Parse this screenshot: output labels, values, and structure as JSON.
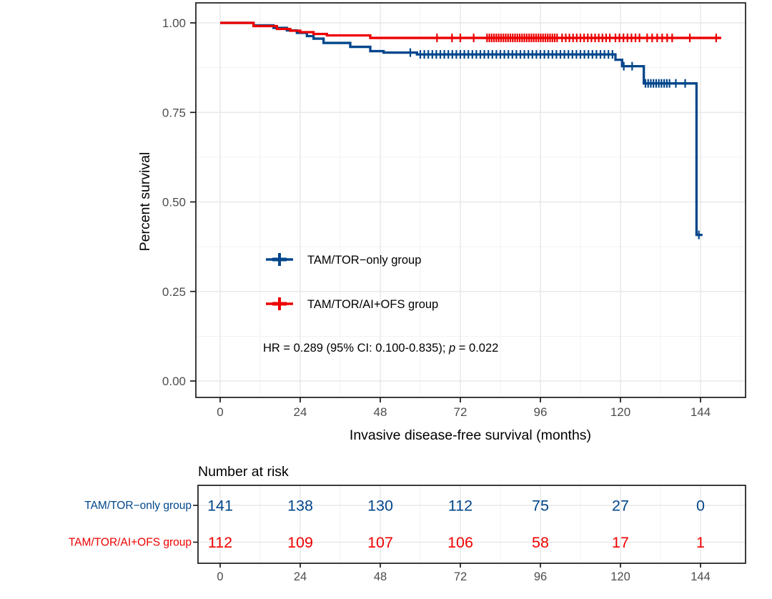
{
  "figure": {
    "y_axis_title": "Percent survival",
    "x_axis_title": "Invasive disease-free survival (months)",
    "hr_annotation": {
      "prefix": "HR = 0.289 (95% CI: 0.100-0.835); ",
      "p_symbol": "p",
      "suffix": " = 0.022"
    }
  },
  "chart_data": {
    "type": "line",
    "subtype": "kaplan-meier-step",
    "title": "",
    "xlabel": "Invasive disease-free survival (months)",
    "ylabel": "Percent survival",
    "xlim": [
      0,
      144
    ],
    "ylim": [
      0.0,
      1.0
    ],
    "x_ticks": [
      0,
      24,
      48,
      72,
      96,
      120,
      144
    ],
    "y_ticks": [
      1.0,
      0.75,
      0.5,
      0.25,
      0.0
    ],
    "y_tick_labels": [
      "1.00",
      "0.75",
      "0.50",
      "0.25",
      "0.00"
    ],
    "grid": "major+minor",
    "legend_position": "inside-lower-left",
    "annotation": "HR = 0.289 (95% CI: 0.100-0.835); p = 0.022",
    "series": [
      {
        "name": "TAM/TOR−only group",
        "color": "#00468B",
        "steps": [
          [
            0,
            1.0
          ],
          [
            10,
            0.993
          ],
          [
            16,
            0.986
          ],
          [
            20,
            0.979
          ],
          [
            23,
            0.972
          ],
          [
            26,
            0.963
          ],
          [
            28,
            0.956
          ],
          [
            31,
            0.944
          ],
          [
            39,
            0.933
          ],
          [
            45,
            0.921
          ],
          [
            49,
            0.917
          ],
          [
            59,
            0.912
          ],
          [
            118.5,
            0.897
          ],
          [
            120.5,
            0.879
          ],
          [
            127,
            0.831
          ],
          [
            142.8,
            0.408
          ]
        ],
        "end_time": 144.6,
        "censor_times": [
          57,
          60,
          61.2,
          62.4,
          63.6,
          64.8,
          66,
          67.2,
          68.4,
          69.6,
          70.8,
          72,
          73.2,
          74.4,
          75.6,
          76.8,
          78,
          79.2,
          80.4,
          81.6,
          82.8,
          84,
          85.2,
          86.4,
          87.6,
          88.8,
          90,
          91.2,
          92.4,
          93.6,
          94.8,
          96,
          97.2,
          98.4,
          99.6,
          100.8,
          102,
          103.2,
          104.4,
          105.6,
          106.8,
          108,
          109.2,
          110.4,
          111.6,
          112.8,
          114,
          115.2,
          116.4,
          117.6,
          121,
          123.5,
          127.5,
          128.3,
          129.1,
          129.9,
          130.7,
          131.5,
          132.3,
          133.1,
          133.9,
          134.7,
          136.6,
          139.4,
          143.5
        ]
      },
      {
        "name": "TAM/TOR/AI+OFS group",
        "color": "#ED0000",
        "steps": [
          [
            0,
            1.0
          ],
          [
            10,
            0.991
          ],
          [
            17,
            0.983
          ],
          [
            21,
            0.978
          ],
          [
            24,
            0.974
          ],
          [
            28,
            0.969
          ],
          [
            32,
            0.965
          ],
          [
            45,
            0.958
          ]
        ],
        "end_time": 150.2,
        "censor_times": [
          65,
          69.5,
          72,
          76,
          80,
          80.7,
          81.4,
          82.1,
          82.8,
          83.5,
          84.2,
          84.9,
          85.6,
          86.3,
          87,
          87.7,
          88.4,
          89.1,
          89.8,
          90.5,
          91.2,
          91.9,
          92.6,
          93.3,
          94,
          94.7,
          95.4,
          96.1,
          96.8,
          97.5,
          98.2,
          98.9,
          99.6,
          100.3,
          101,
          102.5,
          103.6,
          104.7,
          105.8,
          106.9,
          108,
          109.1,
          110.2,
          111.3,
          112.4,
          113.5,
          114.6,
          115.7,
          116.8,
          118.5,
          119.7,
          120.9,
          122.1,
          123.3,
          124.5,
          125.7,
          128,
          129.5,
          131,
          132.5,
          134,
          135.5,
          140.8,
          148.7
        ]
      }
    ]
  },
  "risk_table": {
    "title": "Number at risk",
    "x_ticks": [
      0,
      24,
      48,
      72,
      96,
      120,
      144
    ],
    "rows": [
      {
        "label": "TAM/TOR−only group",
        "color": "#00468B",
        "values": [
          141,
          138,
          130,
          112,
          75,
          27,
          0
        ]
      },
      {
        "label": "TAM/TOR/AI+OFS group",
        "color": "#ED0000",
        "values": [
          112,
          109,
          107,
          106,
          58,
          17,
          1
        ]
      }
    ]
  },
  "colors": {
    "blue": "#00468B",
    "red": "#ED0000",
    "axis_text": "#4d4d4d",
    "grid_major": "#e4e4e4",
    "grid_minor": "#f1f1f1",
    "panel_border": "#1a1a1a",
    "text": "#000000"
  }
}
